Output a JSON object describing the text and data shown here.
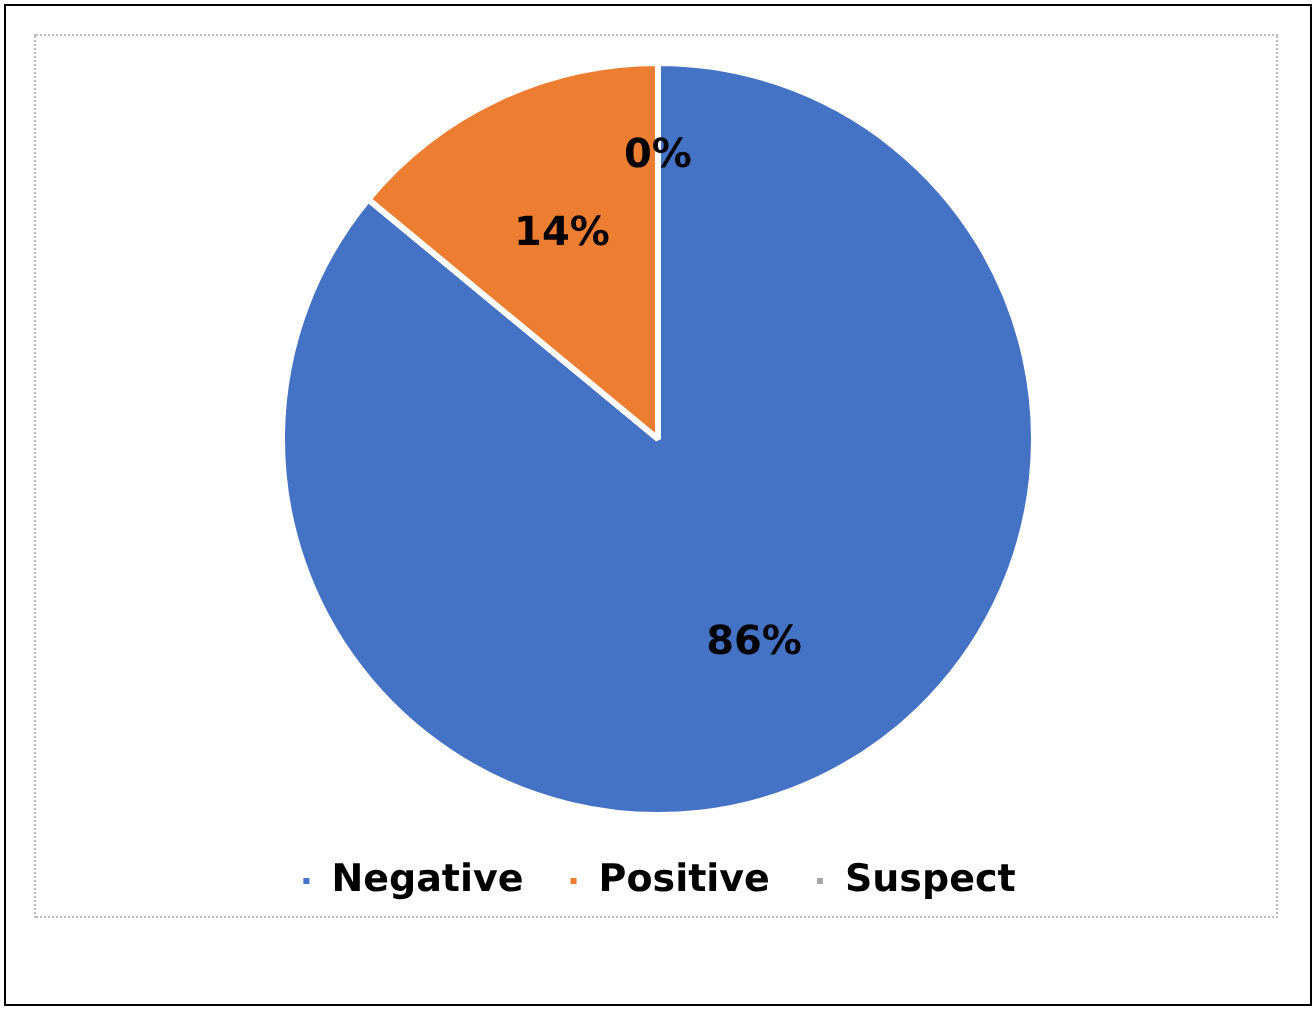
{
  "chart_data": {
    "type": "pie",
    "categories": [
      "Negative",
      "Positive",
      "Suspect"
    ],
    "values": [
      86,
      14,
      0
    ],
    "colors": [
      "#4472c4",
      "#ed7d31",
      "#a5a5a5"
    ],
    "value_labels": [
      "86%",
      "14%",
      "0%"
    ],
    "legend": "bottom"
  }
}
